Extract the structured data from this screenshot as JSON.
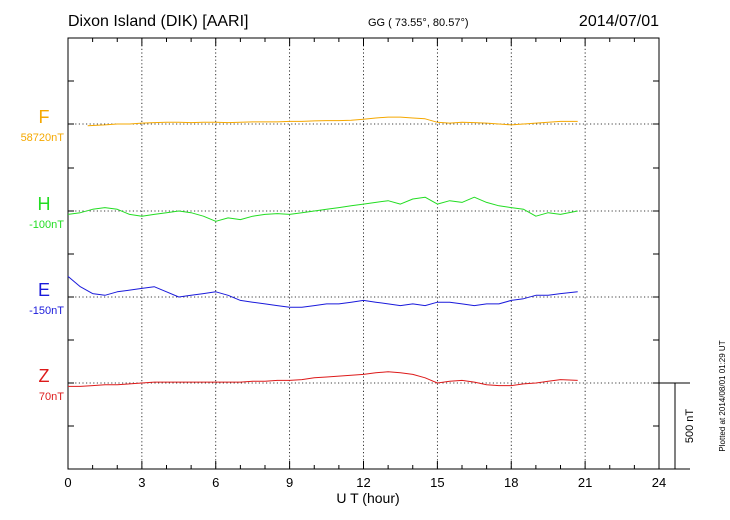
{
  "chart_data": {
    "type": "line",
    "title": "Dixon Island (DIK)  [AARI]",
    "coords": "GG ( 73.55°,  80.57°)",
    "date": "2014/07/01",
    "xlabel": "U T (hour)",
    "xlim": [
      0,
      24
    ],
    "xticks": [
      0,
      3,
      6,
      9,
      12,
      15,
      18,
      21,
      24
    ],
    "grid": true,
    "scale_bar": {
      "value_nT": 500,
      "label": "500 nT"
    },
    "plotted_note": "Plotted at 2014/08/01 01:29 UT",
    "series": [
      {
        "name": "F",
        "baseline_label": "58720nT",
        "baseline_nT": 58720,
        "color": "#f5a800",
        "x": [
          0.8,
          1.5,
          2.0,
          2.5,
          3.0,
          3.5,
          4.0,
          4.5,
          5.0,
          5.5,
          6.0,
          6.5,
          7.0,
          7.5,
          8.0,
          8.5,
          9.0,
          9.5,
          10.0,
          10.5,
          11.0,
          11.5,
          12.0,
          12.5,
          13.0,
          13.5,
          14.0,
          14.5,
          15.0,
          15.5,
          16.0,
          16.5,
          17.0,
          17.5,
          18.0,
          18.5,
          19.0,
          19.5,
          20.0,
          20.7
        ],
        "values": [
          -10,
          -5,
          0,
          0,
          5,
          8,
          10,
          10,
          8,
          10,
          10,
          8,
          10,
          12,
          12,
          12,
          15,
          15,
          18,
          20,
          20,
          22,
          28,
          35,
          40,
          40,
          35,
          30,
          10,
          5,
          10,
          8,
          5,
          0,
          -5,
          0,
          5,
          10,
          15,
          15
        ]
      },
      {
        "name": "H",
        "baseline_label": "-100nT",
        "baseline_nT": -100,
        "color": "#22dd22",
        "x": [
          0.0,
          0.5,
          1.0,
          1.5,
          2.0,
          2.5,
          3.0,
          3.5,
          4.0,
          4.5,
          5.0,
          5.5,
          6.0,
          6.5,
          7.0,
          7.5,
          8.0,
          8.5,
          9.0,
          9.5,
          10.0,
          10.5,
          11.0,
          11.5,
          12.0,
          12.5,
          13.0,
          13.5,
          14.0,
          14.5,
          15.0,
          15.5,
          16.0,
          16.5,
          17.0,
          17.5,
          18.0,
          18.5,
          19.0,
          19.5,
          20.0,
          20.7
        ],
        "values": [
          -20,
          -10,
          10,
          20,
          10,
          -20,
          -30,
          -20,
          -10,
          0,
          -10,
          -30,
          -60,
          -40,
          -50,
          -30,
          -20,
          -15,
          -20,
          -10,
          0,
          10,
          20,
          30,
          40,
          50,
          60,
          40,
          70,
          80,
          40,
          60,
          50,
          80,
          50,
          30,
          20,
          10,
          -30,
          -10,
          -20,
          0
        ]
      },
      {
        "name": "E",
        "baseline_label": "-150nT",
        "baseline_nT": -150,
        "color": "#1a1adb",
        "x": [
          0.0,
          0.5,
          1.0,
          1.5,
          2.0,
          2.5,
          3.0,
          3.5,
          4.0,
          4.5,
          5.0,
          5.5,
          6.0,
          6.5,
          7.0,
          7.5,
          8.0,
          8.5,
          9.0,
          9.5,
          10.0,
          10.5,
          11.0,
          11.5,
          12.0,
          12.5,
          13.0,
          13.5,
          14.0,
          14.5,
          15.0,
          15.5,
          16.0,
          16.5,
          17.0,
          17.5,
          18.0,
          18.5,
          19.0,
          19.5,
          20.0,
          20.7
        ],
        "values": [
          120,
          60,
          20,
          10,
          30,
          40,
          50,
          60,
          30,
          0,
          10,
          20,
          30,
          10,
          -20,
          -30,
          -40,
          -50,
          -60,
          -60,
          -50,
          -40,
          -40,
          -30,
          -20,
          -30,
          -40,
          -50,
          -40,
          -50,
          -30,
          -30,
          -40,
          -50,
          -40,
          -40,
          -20,
          -10,
          10,
          10,
          20,
          30
        ]
      },
      {
        "name": "Z",
        "baseline_label": "70nT",
        "baseline_nT": 70,
        "color": "#dd1a1a",
        "x": [
          0.0,
          0.5,
          1.0,
          1.5,
          2.0,
          2.5,
          3.0,
          3.5,
          4.0,
          4.5,
          5.0,
          5.5,
          6.0,
          6.5,
          7.0,
          7.5,
          8.0,
          8.5,
          9.0,
          9.5,
          10.0,
          10.5,
          11.0,
          11.5,
          12.0,
          12.5,
          13.0,
          13.5,
          14.0,
          14.5,
          15.0,
          15.5,
          16.0,
          16.5,
          17.0,
          17.5,
          18.0,
          18.5,
          19.0,
          19.5,
          20.0,
          20.7
        ],
        "values": [
          -20,
          -20,
          -15,
          -10,
          -10,
          -5,
          0,
          5,
          5,
          5,
          5,
          5,
          5,
          5,
          5,
          10,
          10,
          15,
          15,
          20,
          30,
          35,
          40,
          45,
          50,
          60,
          65,
          60,
          50,
          30,
          0,
          10,
          15,
          5,
          -10,
          -15,
          -15,
          -5,
          0,
          10,
          20,
          15
        ]
      }
    ]
  }
}
